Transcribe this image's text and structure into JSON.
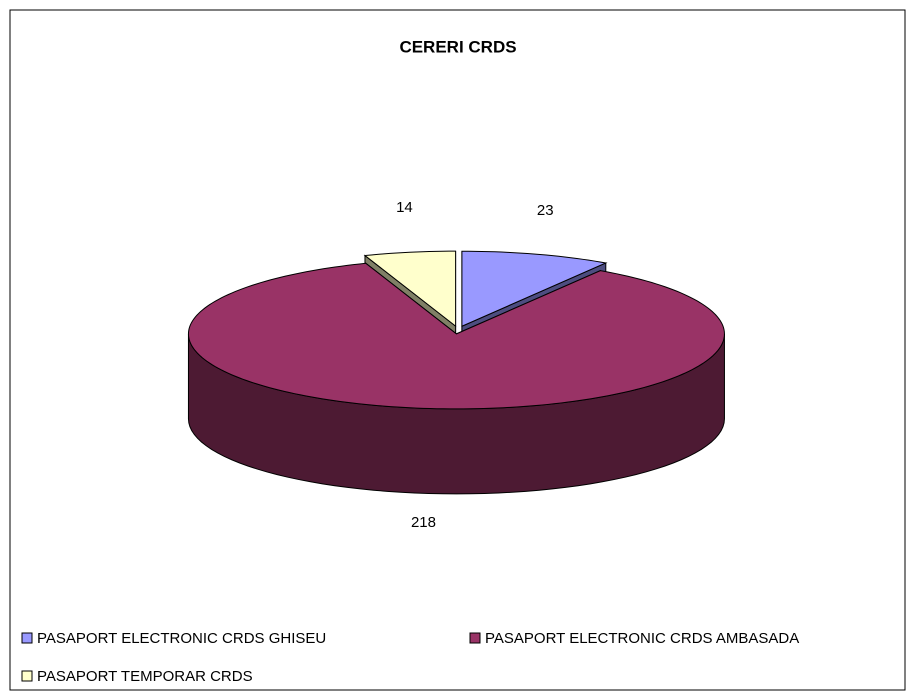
{
  "chart_data": {
    "type": "pie3d",
    "title": "CERERI CRDS",
    "categories": [
      "PASAPORT ELECTRONIC CRDS GHISEU",
      "PASAPORT ELECTRONIC CRDS AMBASADA",
      "PASAPORT TEMPORAR CRDS"
    ],
    "values": [
      23,
      218,
      14
    ],
    "colors": [
      "#9999ff",
      "#993366",
      "#ffffcc"
    ],
    "legend": "bottom"
  }
}
